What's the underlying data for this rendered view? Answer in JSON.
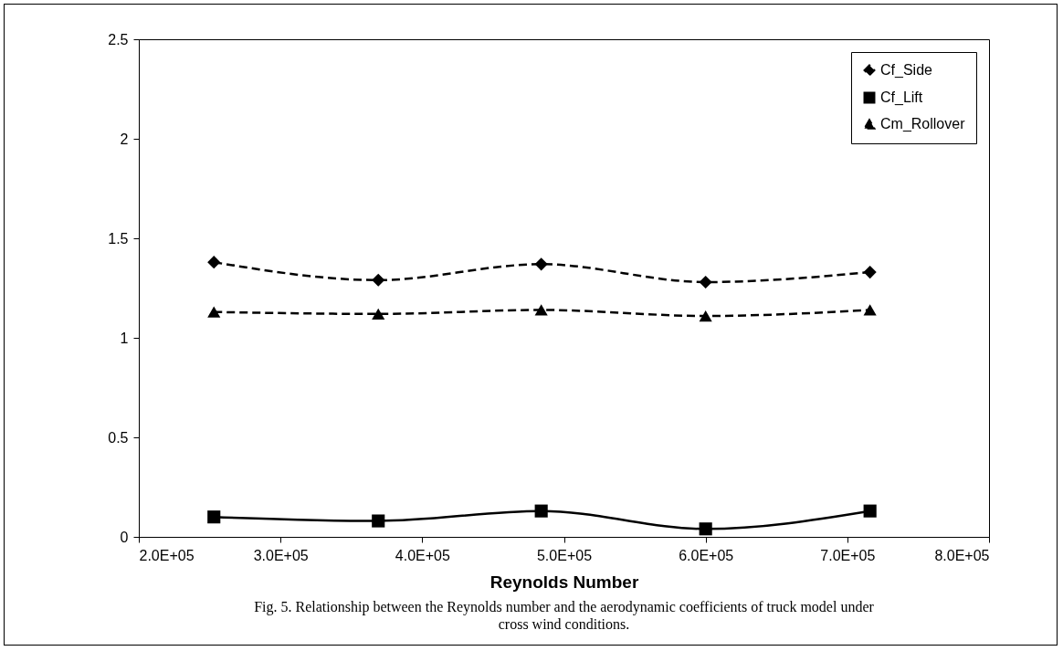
{
  "chart_data": {
    "type": "line",
    "xlabel": "Reynolds Number",
    "x": [
      253000,
      369000,
      484000,
      600000,
      716000
    ],
    "xlim": [
      200000,
      800000
    ],
    "xticks": [
      {
        "value": 200000,
        "label": "2.0E+05"
      },
      {
        "value": 300000,
        "label": "3.0E+05"
      },
      {
        "value": 400000,
        "label": "4.0E+05"
      },
      {
        "value": 500000,
        "label": "5.0E+05"
      },
      {
        "value": 600000,
        "label": "6.0E+05"
      },
      {
        "value": 700000,
        "label": "7.0E+05"
      },
      {
        "value": 800000,
        "label": "8.0E+05"
      }
    ],
    "ylim": [
      0,
      2.5
    ],
    "yticks": [
      0,
      0.5,
      1,
      1.5,
      2,
      2.5
    ],
    "grid": false,
    "legend": "top right",
    "series": [
      {
        "name": "Cf_Side",
        "color": "#000000",
        "marker": "diamond",
        "line_style": "dashed",
        "values": [
          1.38,
          1.29,
          1.37,
          1.28,
          1.33
        ]
      },
      {
        "name": "Cf_Lift",
        "color": "#000000",
        "marker": "square",
        "line_style": "solid",
        "values": [
          0.1,
          0.08,
          0.13,
          0.04,
          0.13
        ]
      },
      {
        "name": "Cm_Rollover",
        "color": "#000000",
        "marker": "triangle",
        "line_style": "dashed",
        "values": [
          1.13,
          1.12,
          1.14,
          1.11,
          1.14
        ]
      }
    ],
    "annotations": [
      "Fig. 5. Relationship between the Reynolds number and the aerodynamic coefficients of truck model under cross wind conditions."
    ]
  }
}
